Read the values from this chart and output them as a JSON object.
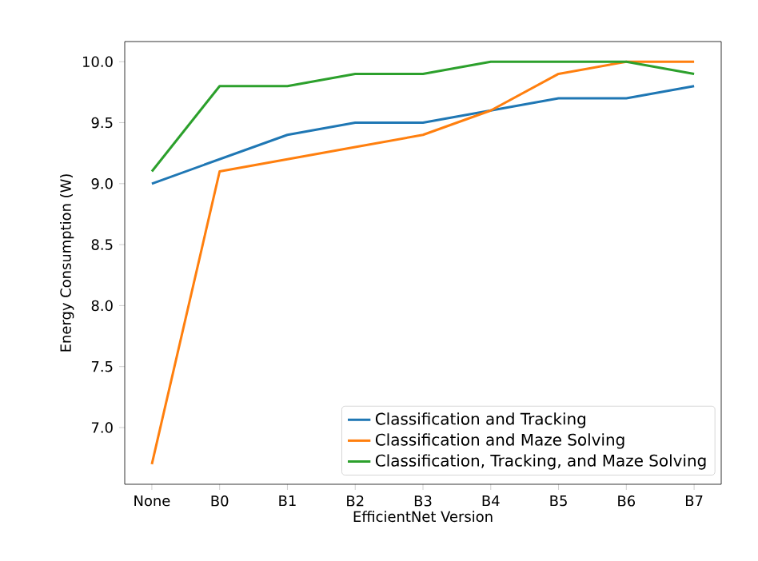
{
  "chart_data": {
    "type": "line",
    "xlabel": "EfficientNet Version",
    "ylabel": "Energy Consumption (W)",
    "categories": [
      "None",
      "B0",
      "B1",
      "B2",
      "B3",
      "B4",
      "B5",
      "B6",
      "B7"
    ],
    "ylim": [
      6.535,
      10.165
    ],
    "yticks": [
      {
        "value": 7,
        "label": "7.0"
      },
      7.5,
      {
        "value": 8,
        "label": "8.0"
      },
      8.5,
      {
        "value": 9,
        "label": "9.0"
      },
      9.5,
      {
        "value": 10,
        "label": "10.0"
      }
    ],
    "legend": "bottom right",
    "grid": false,
    "marker": "none",
    "line_style": "solid",
    "series": [
      {
        "name": "Classification and Tracking",
        "color": "#1f77b4",
        "values": [
          9.0,
          9.2,
          9.4,
          9.5,
          9.5,
          9.6,
          9.7,
          9.7,
          9.8
        ]
      },
      {
        "name": "Classification and Maze Solving",
        "color": "#ff7f0e",
        "values": [
          6.7,
          9.1,
          9.2,
          9.3,
          9.4,
          9.6,
          9.9,
          10.0,
          10.0
        ]
      },
      {
        "name": "Classification, Tracking, and Maze Solving",
        "color": "#2ca02c",
        "values": [
          9.1,
          9.8,
          9.8,
          9.9,
          9.9,
          10.0,
          10.0,
          10.0,
          9.9
        ]
      }
    ]
  }
}
